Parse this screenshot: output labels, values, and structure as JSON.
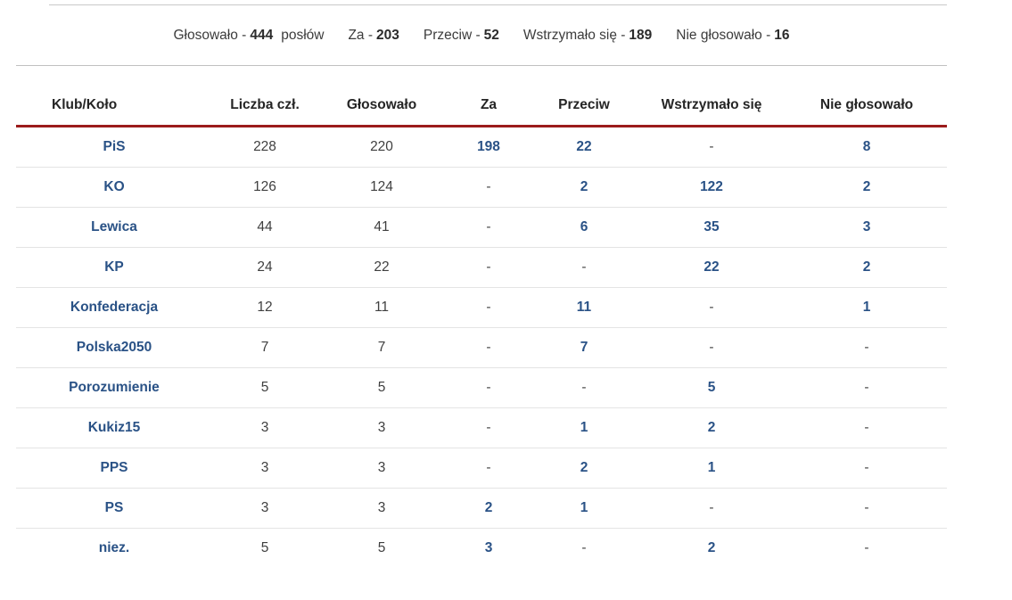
{
  "summary": {
    "items": [
      {
        "label": "Głosowało -",
        "value": "444",
        "suffix": "posłów"
      },
      {
        "label": "Za -",
        "value": "203",
        "suffix": ""
      },
      {
        "label": "Przeciw -",
        "value": "52",
        "suffix": ""
      },
      {
        "label": "Wstrzymało się -",
        "value": "189",
        "suffix": ""
      },
      {
        "label": "Nie głosowało -",
        "value": "16",
        "suffix": ""
      }
    ]
  },
  "table": {
    "headers": [
      "Klub/Koło",
      "Liczba czł.",
      "Głosowało",
      "Za",
      "Przeciw",
      "Wstrzymało się",
      "Nie głosowało"
    ],
    "rows": [
      {
        "club": "PiS",
        "members": "228",
        "voted": "220",
        "for": "198",
        "against": "22",
        "abstained": "-",
        "not_voting": "8"
      },
      {
        "club": "KO",
        "members": "126",
        "voted": "124",
        "for": "-",
        "against": "2",
        "abstained": "122",
        "not_voting": "2"
      },
      {
        "club": "Lewica",
        "members": "44",
        "voted": "41",
        "for": "-",
        "against": "6",
        "abstained": "35",
        "not_voting": "3"
      },
      {
        "club": "KP",
        "members": "24",
        "voted": "22",
        "for": "-",
        "against": "-",
        "abstained": "22",
        "not_voting": "2"
      },
      {
        "club": "Konfederacja",
        "members": "12",
        "voted": "11",
        "for": "-",
        "against": "11",
        "abstained": "-",
        "not_voting": "1"
      },
      {
        "club": "Polska2050",
        "members": "7",
        "voted": "7",
        "for": "-",
        "against": "7",
        "abstained": "-",
        "not_voting": "-"
      },
      {
        "club": "Porozumienie",
        "members": "5",
        "voted": "5",
        "for": "-",
        "against": "-",
        "abstained": "5",
        "not_voting": "-"
      },
      {
        "club": "Kukiz15",
        "members": "3",
        "voted": "3",
        "for": "-",
        "against": "1",
        "abstained": "2",
        "not_voting": "-"
      },
      {
        "club": "PPS",
        "members": "3",
        "voted": "3",
        "for": "-",
        "against": "2",
        "abstained": "1",
        "not_voting": "-"
      },
      {
        "club": "PS",
        "members": "3",
        "voted": "3",
        "for": "2",
        "against": "1",
        "abstained": "-",
        "not_voting": "-"
      },
      {
        "club": "niez.",
        "members": "5",
        "voted": "5",
        "for": "3",
        "against": "-",
        "abstained": "2",
        "not_voting": "-"
      }
    ]
  },
  "colors": {
    "accent_red": "#9b1b1b",
    "link_blue": "#2a5286",
    "text_dark": "#2b2b2b",
    "text_gray": "#3f3f3f",
    "separator_gray": "#c9c9c9",
    "row_line_gray": "#e4e4e4"
  }
}
